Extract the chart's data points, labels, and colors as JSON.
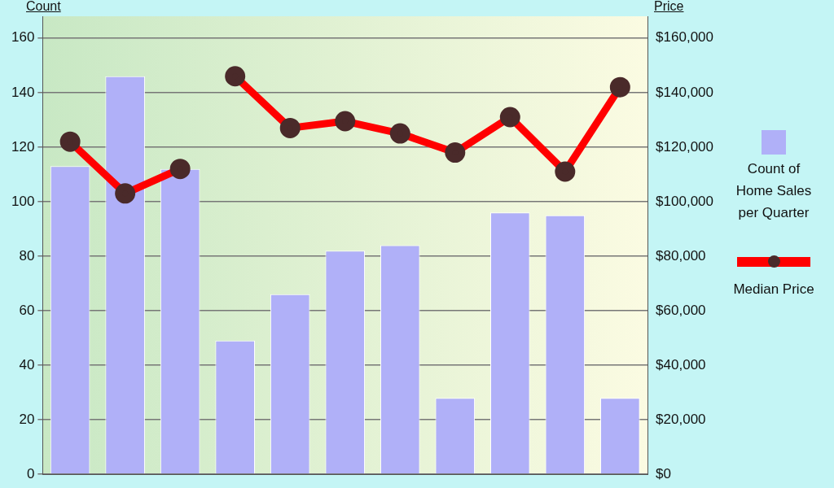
{
  "chart_data": {
    "type": "bar",
    "ylabel": "Count",
    "y2label": "Price",
    "categories": [
      null,
      null,
      null,
      null,
      null,
      null,
      null,
      null,
      null,
      null,
      null
    ],
    "series": [
      {
        "name": "Count of Home Sales per Quarter",
        "color": "#b0b0f8",
        "values": [
          113,
          146,
          112,
          49,
          66,
          82,
          84,
          28,
          96,
          95,
          28
        ]
      },
      {
        "name": "Median Price",
        "type": "line",
        "axis": "y2",
        "color": "#ff0000",
        "marker": "circle",
        "values": [
          122000,
          103000,
          112000,
          null,
          null,
          null,
          null,
          null,
          null,
          null,
          null
        ]
      },
      {
        "type": "line",
        "axis": "y2",
        "color": "#ff0000",
        "marker": "circle",
        "values": [
          null,
          null,
          null,
          146000,
          127000,
          129500,
          125000,
          118000,
          131000,
          111000,
          142000
        ]
      }
    ],
    "ylim": [
      0,
      168
    ],
    "yticks": [
      0,
      20,
      40,
      60,
      80,
      100,
      120,
      140,
      160
    ],
    "y2lim": [
      0,
      168000
    ],
    "y2ticks": [
      {
        "value": 0,
        "label": "$0"
      },
      {
        "value": 20000,
        "label": "$20,000"
      },
      {
        "value": 40000,
        "label": "$40,000"
      },
      {
        "value": 60000,
        "label": "$60,000"
      },
      {
        "value": 80000,
        "label": "$80,000"
      },
      {
        "value": 100000,
        "label": "$100,000"
      },
      {
        "value": 120000,
        "label": "$120,000"
      },
      {
        "value": 140000,
        "label": "$140,000"
      },
      {
        "value": 160000,
        "label": "$160,000"
      }
    ],
    "grid": "y",
    "legend": "right"
  }
}
